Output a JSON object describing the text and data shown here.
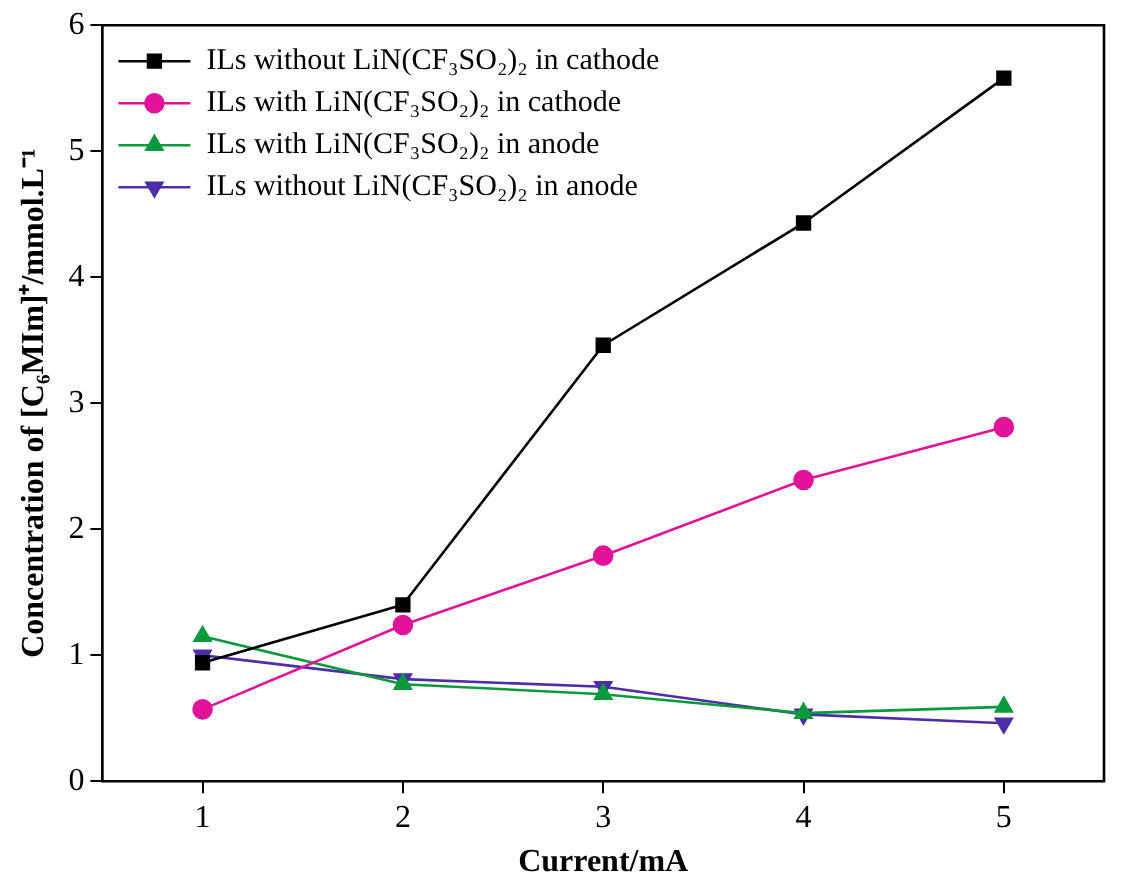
{
  "chart_data": {
    "type": "line",
    "xlabel": "Current/mA",
    "ylabel": "Concentration of [C₆MIm]⁺/mmol.L⁻¹",
    "x": [
      1,
      2,
      3,
      4,
      5
    ],
    "xlim": [
      0.5,
      5.5
    ],
    "xticks": [
      1,
      2,
      3,
      4,
      5
    ],
    "ylim": [
      0,
      6
    ],
    "yticks": [
      0,
      1,
      2,
      3,
      4,
      5,
      6
    ],
    "grid": false,
    "legend": "top left",
    "line_style": "solid",
    "series": [
      {
        "name": "ILs without LiN(CF₃SO₂)₂ in cathode",
        "color": "#000000",
        "marker": "square",
        "values": [
          0.94,
          1.4,
          3.46,
          4.43,
          5.58
        ]
      },
      {
        "name": "ILs with LiN(CF₃SO₂)₂ in cathode",
        "color": "#e0139a",
        "marker": "circle",
        "values": [
          0.57,
          1.24,
          1.79,
          2.39,
          2.81
        ]
      },
      {
        "name": "ILs with LiN(CF₃SO₂)₂ in anode",
        "color": "#0a9a3c",
        "marker": "triangle",
        "values": [
          1.15,
          0.77,
          0.69,
          0.54,
          0.59
        ]
      },
      {
        "name": "ILs without LiN(CF₃SO₂)₂ in anode",
        "color": "#4b2ea8",
        "marker": "triangle-down",
        "values": [
          1.0,
          0.81,
          0.75,
          0.53,
          0.46
        ]
      }
    ]
  }
}
